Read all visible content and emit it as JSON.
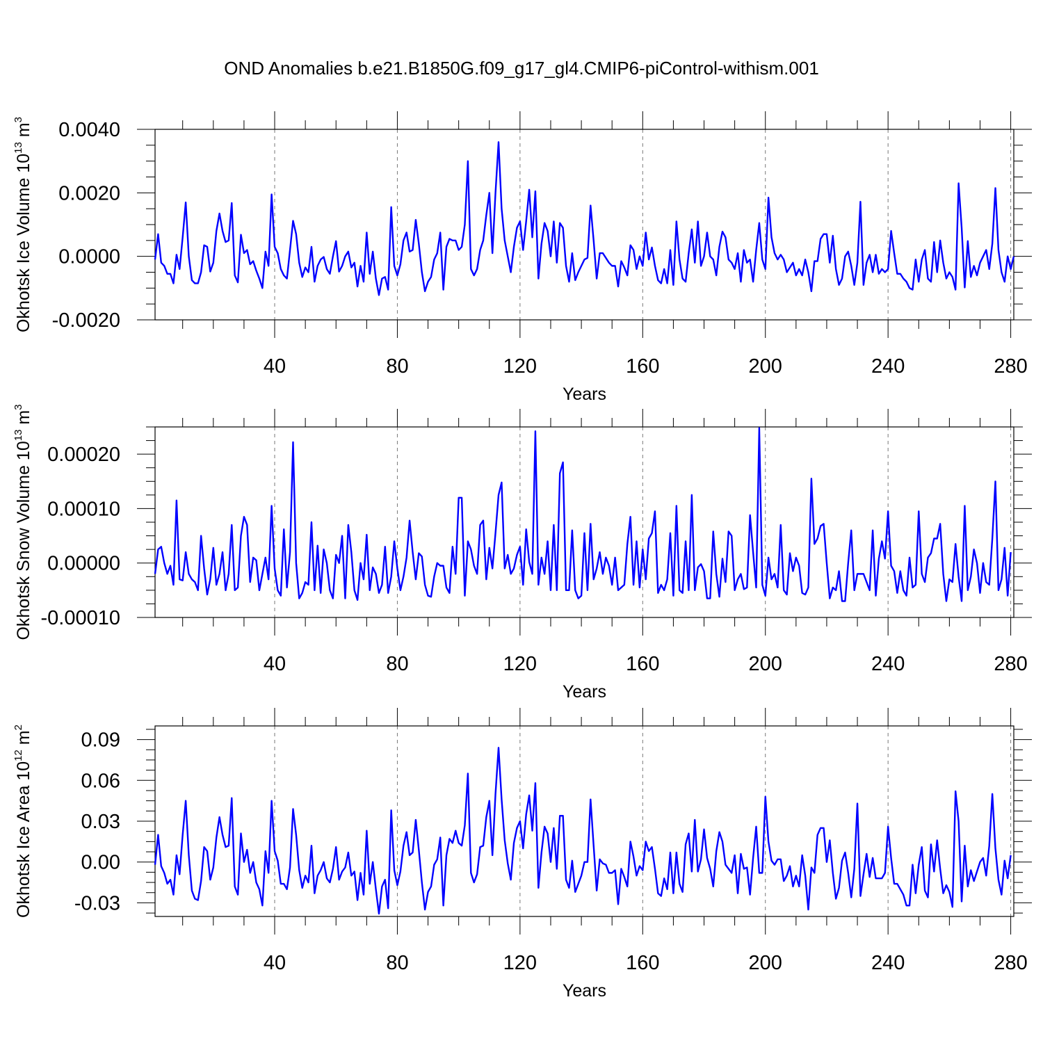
{
  "title": "OND Anomalies b.e21.B1850G.f09_g17_gl4.CMIP6-piControl-withism.001",
  "colors": {
    "line": "#0000ff",
    "axis": "#000000",
    "grid": "#777777"
  },
  "chart_data": [
    {
      "type": "line",
      "name": "okhotsk-ice-volume",
      "ylabel_main": "Okhotsk Ice Volume 10",
      "ylabel_sup": "13",
      "ylabel_unit": " m",
      "ylabel_unit_sup": "3",
      "xlabel": "Years",
      "xlim": [
        1,
        281
      ],
      "ylim": [
        -0.002,
        0.004
      ],
      "xticks": [
        40,
        80,
        120,
        160,
        200,
        240,
        280
      ],
      "xtick_labels": [
        "40",
        "80",
        "120",
        "160",
        "200",
        "240",
        "280"
      ],
      "yticks": [
        -0.002,
        0.0,
        0.002,
        0.004
      ],
      "ytick_labels": [
        "-0.0020",
        "0.0000",
        "0.0020",
        "0.0040"
      ],
      "grid": "vertical-dashed",
      "x_start": 1,
      "values": [
        -0.0001,
        0.0007,
        -0.0002,
        -0.0003,
        -0.00055,
        -0.00055,
        -0.00085,
        5e-05,
        -0.0004,
        0.0006,
        0.0017,
        0.0,
        -0.00075,
        -0.00085,
        -0.00085,
        -0.0005,
        0.00035,
        0.0003,
        -0.00048,
        -0.0002,
        0.0008,
        0.00135,
        0.0008,
        0.00045,
        0.0005,
        0.00168,
        -0.0006,
        -0.00082,
        0.00068,
        0.0001,
        0.0002,
        -0.00025,
        -0.00015,
        -0.00045,
        -0.0007,
        -0.001,
        0.00015,
        -0.0003,
        0.00195,
        0.0003,
        0.0001,
        -0.0004,
        -0.0006,
        -0.0007,
        0.0002,
        0.00112,
        0.0007,
        -0.0002,
        -0.00065,
        -0.00035,
        -0.0005,
        0.0003,
        -0.0008,
        -0.0003,
        -0.0001,
        -2e-05,
        -0.0004,
        -0.00055,
        0.0,
        0.00048,
        -0.00048,
        -0.0003,
        0.0,
        0.00015,
        -0.00035,
        -0.0002,
        -0.00095,
        -0.0003,
        -0.0008,
        0.00075,
        -0.00055,
        0.00015,
        -0.0007,
        -0.00122,
        -0.0007,
        -0.00065,
        -0.00105,
        0.00155,
        -0.0003,
        -0.0006,
        -0.00025,
        0.0005,
        0.00075,
        0.00015,
        0.0002,
        0.00115,
        0.0004,
        -0.0005,
        -0.0011,
        -0.0008,
        -0.00065,
        -0.0001,
        0.0001,
        0.00075,
        -0.00105,
        0.0003,
        0.00055,
        0.0005,
        0.0005,
        0.0002,
        0.0003,
        0.001,
        0.003,
        -0.0004,
        -0.0006,
        -0.0004,
        0.0002,
        0.0005,
        0.0013,
        0.002,
        0.0001,
        0.002,
        0.0036,
        0.0015,
        0.0005,
        0.0,
        -0.0005,
        0.0003,
        0.0009,
        0.0011,
        0.0002,
        0.0011,
        0.0021,
        0.0006,
        0.00205,
        -0.0007,
        0.0004,
        0.00105,
        0.0008,
        0.0,
        0.0011,
        -0.0002,
        0.00105,
        0.0009,
        -0.0003,
        -0.0008,
        0.0001,
        -0.00075,
        -0.0005,
        -0.0003,
        -0.0001,
        -5e-05,
        0.0016,
        0.0005,
        -0.0007,
        0.0001,
        0.0001,
        -5e-05,
        -0.0002,
        -0.0003,
        -0.0003,
        -0.00095,
        -0.00015,
        -0.00035,
        -0.0006,
        0.00035,
        0.0002,
        -0.0004,
        0.0,
        -0.0003,
        0.00075,
        -0.0001,
        0.00028,
        -0.0003,
        -0.00075,
        -0.00085,
        -0.0004,
        -0.00085,
        0.0002,
        -0.0009,
        0.0011,
        -0.0001,
        -0.0007,
        -0.0008,
        0.0001,
        0.00085,
        -0.0002,
        0.0011,
        -0.0003,
        0.0,
        0.00075,
        0.0,
        -0.0001,
        -0.0006,
        0.0003,
        0.00078,
        0.0006,
        -0.0001,
        -0.0002,
        -0.0004,
        0.0001,
        -0.0008,
        0.0002,
        -0.0002,
        -0.0001,
        -0.0008,
        0.0002,
        0.00105,
        -0.0001,
        -0.0004,
        0.00185,
        0.0006,
        0.0001,
        -0.0001,
        5e-05,
        -0.0001,
        -0.0005,
        -0.00035,
        -0.0002,
        -0.0006,
        -0.0004,
        -0.0006,
        -0.0001,
        -0.0005,
        -0.0011,
        -0.00015,
        -0.00015,
        0.00055,
        0.0007,
        0.0007,
        -0.0002,
        0.00065,
        -0.0004,
        -0.0009,
        -0.0007,
        0.0,
        0.00015,
        -0.0003,
        -0.0009,
        -0.0002,
        0.00172,
        -0.0009,
        -0.0002,
        5e-05,
        -0.0005,
        5e-05,
        -0.00055,
        -0.0004,
        -0.0005,
        -0.0004,
        0.0008,
        0.0001,
        -0.00055,
        -0.00055,
        -0.0007,
        -0.0008,
        -0.001,
        -0.00105,
        -0.0001,
        -0.0008,
        -0.0001,
        0.0002,
        -0.0007,
        -0.0008,
        0.00045,
        -0.0005,
        0.0005,
        -0.0002,
        -0.0007,
        -0.0005,
        -0.00065,
        -0.00105,
        0.0023,
        0.0009,
        -0.00098,
        0.00048,
        -0.00065,
        -0.0003,
        -0.0006,
        -0.0002,
        0.0,
        0.0002,
        -0.0004,
        0.0004,
        0.00215,
        0.0002,
        -0.0005,
        -0.0008,
        0.0,
        -0.0004,
        0.0
      ]
    },
    {
      "type": "line",
      "name": "okhotsk-snow-volume",
      "ylabel_main": "Okhotsk Snow Volume 10",
      "ylabel_sup": "13",
      "ylabel_unit": " m",
      "ylabel_unit_sup": "3",
      "xlabel": "Years",
      "xlim": [
        1,
        281
      ],
      "ylim": [
        -0.0001,
        0.00025
      ],
      "xticks": [
        40,
        80,
        120,
        160,
        200,
        240,
        280
      ],
      "xtick_labels": [
        "40",
        "80",
        "120",
        "160",
        "200",
        "240",
        "280"
      ],
      "yticks": [
        -0.0001,
        0.0,
        0.0001,
        0.0002
      ],
      "ytick_labels": [
        "-0.00010",
        "0.00000",
        "0.00010",
        "0.00020"
      ],
      "grid": "vertical-dashed",
      "x_start": 1,
      "values": [
        -2e-05,
        2.5e-05,
        3e-05,
        0.0,
        -2e-05,
        -5e-06,
        -4e-05,
        0.000115,
        -3e-05,
        -3.2e-05,
        2e-05,
        -2e-05,
        -3e-05,
        -3.5e-05,
        -5e-05,
        5e-05,
        -1e-05,
        -5.8e-05,
        -3e-05,
        2.8e-05,
        -4e-05,
        -2e-05,
        2e-05,
        -5e-05,
        -2e-05,
        7e-05,
        -5e-05,
        -4.5e-05,
        5e-05,
        8.5e-05,
        7e-05,
        -3.5e-05,
        1e-05,
        5e-06,
        -5e-05,
        -2e-05,
        1e-05,
        -3e-05,
        0.000105,
        -1e-05,
        -5e-05,
        -6e-05,
        6.2e-05,
        -4.5e-05,
        2e-05,
        0.000222,
        0.0,
        -6.5e-05,
        -5.5e-05,
        -3.5e-05,
        -4e-05,
        7.5e-05,
        -5e-05,
        3.2e-05,
        -5.5e-05,
        2.5e-05,
        0.0,
        -5e-05,
        -6.5e-05,
        1.5e-05,
        0.0,
        5e-05,
        -6.5e-05,
        7e-05,
        2e-05,
        -5e-05,
        -6.8e-05,
        0.0,
        -3e-05,
        5.2e-05,
        -5e-05,
        -8e-06,
        -2e-05,
        -5.5e-05,
        -4e-05,
        3e-05,
        -5.5e-05,
        -2.5e-05,
        4e-05,
        -1e-05,
        -5e-05,
        -2.5e-05,
        1e-05,
        7.8e-05,
        2e-05,
        -3e-05,
        1.8e-05,
        1.2e-05,
        -4e-05,
        -6e-05,
        -6.2e-05,
        -2.5e-05,
        0.0,
        -5e-06,
        -5e-06,
        -4.5e-05,
        -5.5e-05,
        3e-05,
        -2e-05,
        0.00012,
        0.00012,
        -6e-05,
        4e-05,
        2.5e-05,
        -5e-06,
        -2e-05,
        7e-05,
        7.8e-05,
        -3e-05,
        2.8e-05,
        -1e-05,
        5.5e-05,
        0.000125,
        0.000148,
        -1e-05,
        1.5e-05,
        -2e-05,
        -1e-05,
        1.5e-05,
        3e-05,
        -4e-05,
        6.2e-05,
        2e-06,
        -2e-05,
        0.000242,
        -4e-05,
        1e-05,
        -2e-05,
        4e-05,
        -5e-05,
        7e-05,
        -5e-05,
        0.000165,
        0.000185,
        -5e-05,
        -5e-05,
        6e-05,
        -5e-05,
        -6.5e-05,
        -6e-05,
        5.5e-05,
        -5e-05,
        7.2e-05,
        -3e-05,
        -1e-05,
        2e-05,
        -2e-05,
        1e-05,
        -5e-06,
        -4e-05,
        1e-05,
        -5e-05,
        -4.5e-05,
        -4e-05,
        3.5e-05,
        8.5e-05,
        -4e-05,
        4e-05,
        -4.5e-05,
        2.5e-05,
        -3e-05,
        4.5e-05,
        5.5e-05,
        9.5e-05,
        -5.5e-05,
        -4e-05,
        -5e-05,
        -3e-05,
        5.5e-05,
        -6e-05,
        0.000105,
        -5e-05,
        -5.5e-05,
        4e-05,
        -5e-05,
        0.000125,
        -5e-05,
        -8e-06,
        -2e-06,
        -1.5e-05,
        -6.5e-05,
        -6.5e-05,
        5.8e-05,
        -2e-05,
        -6.2e-05,
        8e-06,
        -3.5e-05,
        5.8e-05,
        5e-05,
        -5e-05,
        -3e-05,
        -2e-05,
        -4.8e-05,
        -4.5e-05,
        8.8e-05,
        2e-05,
        -4.5e-05,
        0.000248,
        -4e-05,
        -6e-05,
        1e-05,
        -3e-05,
        -2e-05,
        -4.5e-05,
        7e-05,
        -5e-05,
        -5.8e-05,
        1.8e-05,
        -1.5e-05,
        1e-05,
        -5e-06,
        -5.5e-05,
        -5.8e-05,
        -4.5e-05,
        0.000155,
        3.5e-05,
        4.5e-05,
        6.8e-05,
        7.2e-05,
        0.0,
        -6.5e-05,
        -4.5e-05,
        -5e-05,
        -1.5e-05,
        -7e-05,
        -7e-05,
        0.0,
        6e-05,
        -5e-05,
        -2e-05,
        -2e-05,
        -2e-05,
        -3.5e-05,
        -5e-05,
        6e-05,
        -6e-05,
        8e-06,
        4e-05,
        8e-06,
        9.5e-05,
        -5e-06,
        -1.5e-05,
        -5.5e-05,
        -1.5e-05,
        -5e-05,
        -6e-05,
        1e-05,
        -4.5e-05,
        -4e-05,
        9.5e-05,
        -2e-05,
        -3.5e-05,
        1e-05,
        1.8e-05,
        4.5e-05,
        4.5e-05,
        7.2e-05,
        -2e-05,
        -7e-05,
        -3e-05,
        -3.5e-05,
        3.5e-05,
        -2.5e-05,
        -7e-05,
        0.000105,
        -5e-05,
        -2.5e-05,
        2.5e-05,
        0.0,
        -5.5e-05,
        0.0,
        -3.5e-05,
        -4e-05,
        4.5e-05,
        0.00015,
        -5e-05,
        -3e-05,
        2.8e-05,
        -6e-05,
        2e-05
      ]
    },
    {
      "type": "line",
      "name": "okhotsk-ice-area",
      "ylabel_main": "Okhotsk Ice Area 10",
      "ylabel_sup": "12",
      "ylabel_unit": " m",
      "ylabel_unit_sup": "2",
      "xlabel": "Years",
      "xlim": [
        1,
        281
      ],
      "ylim": [
        -0.04,
        0.1
      ],
      "xticks": [
        40,
        80,
        120,
        160,
        200,
        240,
        280
      ],
      "xtick_labels": [
        "40",
        "80",
        "120",
        "160",
        "200",
        "240",
        "280"
      ],
      "yticks": [
        -0.03,
        0.0,
        0.03,
        0.06,
        0.09
      ],
      "ytick_labels": [
        "-0.03",
        "0.00",
        "0.03",
        "0.06",
        "0.09"
      ],
      "grid": "vertical-dashed",
      "x_start": 1,
      "values": [
        -0.002,
        0.02,
        -0.003,
        -0.008,
        -0.016,
        -0.013,
        -0.024,
        0.005,
        -0.009,
        0.02,
        0.045,
        0.005,
        -0.021,
        -0.027,
        -0.028,
        -0.014,
        0.011,
        0.008,
        -0.013,
        -0.004,
        0.018,
        0.033,
        0.02,
        0.011,
        0.012,
        0.047,
        -0.018,
        -0.024,
        0.021,
        0.0,
        0.009,
        -0.008,
        0.0,
        -0.015,
        -0.02,
        -0.032,
        0.008,
        -0.008,
        0.045,
        0.008,
        0.001,
        -0.016,
        -0.016,
        -0.02,
        -0.004,
        0.039,
        0.02,
        -0.006,
        -0.019,
        -0.01,
        -0.015,
        0.012,
        -0.023,
        -0.01,
        -0.006,
        0.0,
        -0.012,
        -0.015,
        -0.005,
        0.011,
        -0.013,
        -0.007,
        -0.004,
        0.007,
        -0.01,
        -0.007,
        -0.028,
        -0.008,
        -0.024,
        0.023,
        -0.016,
        0.0,
        -0.02,
        -0.038,
        -0.018,
        -0.013,
        -0.034,
        0.038,
        -0.006,
        -0.017,
        -0.007,
        0.012,
        0.022,
        0.005,
        0.007,
        0.031,
        0.009,
        -0.015,
        -0.035,
        -0.022,
        -0.018,
        -0.002,
        0.002,
        0.018,
        -0.032,
        0.005,
        0.017,
        0.014,
        0.023,
        0.014,
        0.012,
        0.027,
        0.065,
        -0.008,
        -0.015,
        -0.009,
        0.011,
        0.012,
        0.033,
        0.045,
        0.005,
        0.05,
        0.084,
        0.046,
        0.016,
        -0.001,
        -0.013,
        0.014,
        0.025,
        0.03,
        0.01,
        0.035,
        0.049,
        0.023,
        0.058,
        -0.019,
        0.007,
        0.026,
        0.021,
        0.0,
        0.025,
        -0.005,
        0.034,
        0.034,
        -0.013,
        -0.019,
        0.001,
        -0.022,
        -0.016,
        -0.01,
        0.0,
        0.0,
        0.046,
        0.012,
        -0.021,
        0.002,
        -0.001,
        -0.002,
        -0.008,
        -0.008,
        -0.006,
        -0.031,
        -0.005,
        -0.011,
        -0.018,
        0.015,
        0.004,
        -0.01,
        -0.003,
        -0.006,
        0.015,
        0.008,
        0.011,
        -0.005,
        -0.023,
        -0.025,
        -0.012,
        -0.02,
        0.007,
        -0.023,
        0.007,
        -0.016,
        -0.022,
        0.013,
        0.021,
        -0.007,
        0.031,
        -0.007,
        0.002,
        0.024,
        0.003,
        -0.005,
        -0.018,
        0.008,
        0.022,
        0.015,
        -0.002,
        -0.005,
        -0.008,
        0.005,
        -0.023,
        0.006,
        -0.005,
        -0.004,
        -0.024,
        0.003,
        0.026,
        -0.008,
        -0.008,
        0.048,
        0.015,
        0.001,
        -0.002,
        0.002,
        0.002,
        -0.014,
        -0.01,
        -0.003,
        -0.018,
        -0.01,
        -0.018,
        0.005,
        -0.01,
        -0.035,
        -0.004,
        -0.008,
        0.02,
        0.025,
        0.025,
        0.0,
        0.016,
        -0.008,
        -0.027,
        -0.019,
        0.001,
        0.007,
        -0.008,
        -0.026,
        -0.005,
        0.043,
        -0.025,
        -0.009,
        0.006,
        -0.011,
        0.003,
        -0.012,
        -0.012,
        -0.012,
        -0.008,
        0.026,
        0.003,
        -0.016,
        -0.016,
        -0.02,
        -0.024,
        -0.032,
        -0.032,
        -0.002,
        -0.023,
        -0.002,
        0.011,
        -0.021,
        -0.026,
        0.013,
        -0.007,
        0.016,
        -0.005,
        -0.023,
        -0.017,
        -0.022,
        -0.033,
        0.052,
        0.03,
        -0.029,
        0.012,
        -0.018,
        -0.006,
        -0.014,
        -0.007,
        0.0,
        0.003,
        -0.01,
        0.012,
        0.05,
        0.01,
        -0.013,
        -0.024,
        0.001,
        -0.012,
        0.005
      ]
    }
  ]
}
